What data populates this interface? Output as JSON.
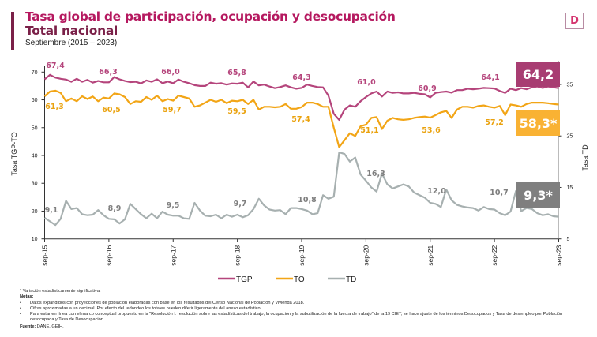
{
  "header": {
    "title": "Tasa global de participación, ocupación y desocupación",
    "subtitle": "Total nacional",
    "period": "Septiembre (2015 – 2023)",
    "logo_letter": "D"
  },
  "chart_data": {
    "type": "line",
    "title": "Tasa global de participación, ocupación y desocupación - Total nacional",
    "ylabel_left": "Tasa TGP-TO",
    "ylabel_right": "Tasa TD",
    "ylim_left": [
      10,
      70
    ],
    "yticks_left": [
      "10",
      "20",
      "30",
      "40",
      "50",
      "60",
      "70"
    ],
    "ylim_right": [
      5,
      35
    ],
    "yticks_right": [
      "5",
      "15",
      "25",
      "35"
    ],
    "xticks": [
      "sep-15",
      "sep-16",
      "sep-17",
      "sep-18",
      "sep-19",
      "sep-20",
      "sep-21",
      "sep-22",
      "sep-23"
    ],
    "x_frequency": "monthly, sep-2015 to sep-2023",
    "legend_position": "bottom",
    "series": [
      {
        "name": "TGP",
        "axis": "left",
        "color": "#b5457c",
        "values": [
          67.4,
          69.0,
          68.0,
          67.6,
          67.3,
          66.5,
          67.6,
          66.5,
          67.2,
          66.2,
          66.8,
          66.3,
          66.3,
          68.2,
          67.4,
          66.8,
          66.4,
          66.5,
          65.9,
          67.0,
          66.5,
          67.4,
          66.0,
          66.6,
          66.0,
          67.3,
          66.5,
          66.0,
          65.3,
          65.0,
          65.0,
          66.2,
          65.8,
          66.0,
          65.5,
          65.9,
          65.8,
          66.2,
          64.5,
          66.6,
          65.2,
          65.5,
          64.8,
          64.2,
          64.6,
          65.2,
          64.5,
          64.0,
          64.3,
          65.5,
          65.0,
          64.6,
          64.5,
          61.5,
          55.0,
          52.8,
          56.5,
          58.0,
          57.5,
          59.5,
          61.0,
          62.3,
          63.0,
          61.2,
          63.0,
          62.5,
          62.7,
          62.3,
          62.3,
          62.5,
          62.2,
          62.0,
          60.9,
          62.5,
          62.8,
          63.0,
          62.6,
          63.5,
          63.5,
          64.0,
          63.8,
          64.0,
          64.3,
          64.2,
          64.1,
          63.2,
          62.5,
          64.0,
          63.5,
          64.2,
          63.8,
          64.5,
          64.8,
          64.3,
          64.8,
          64.5,
          64.2
        ],
        "sep_labels": [
          "67,4",
          "66,3",
          "66,0",
          "65,8",
          "64,3",
          "61,0",
          "60,9",
          "64,1"
        ],
        "last_label": "64,2"
      },
      {
        "name": "TO",
        "axis": "left",
        "color": "#f2a516",
        "values": [
          61.3,
          63.0,
          63.3,
          62.5,
          59.5,
          60.5,
          59.5,
          61.3,
          60.3,
          61.2,
          59.5,
          60.8,
          60.5,
          62.3,
          62.0,
          61.0,
          58.5,
          59.5,
          59.3,
          61.0,
          60.0,
          61.5,
          59.5,
          60.3,
          59.7,
          61.5,
          61.0,
          60.5,
          57.5,
          58.0,
          59.0,
          60.0,
          59.3,
          60.0,
          58.8,
          59.7,
          59.5,
          60.0,
          58.5,
          60.0,
          56.5,
          57.5,
          57.5,
          57.3,
          57.5,
          58.5,
          56.8,
          56.8,
          57.4,
          59.0,
          59.0,
          58.5,
          57.5,
          57.5,
          50.0,
          43.0,
          45.5,
          48.0,
          47.0,
          50.5,
          51.1,
          53.5,
          53.8,
          49.5,
          52.5,
          53.5,
          53.0,
          52.8,
          53.0,
          53.5,
          53.8,
          54.0,
          53.6,
          54.5,
          55.5,
          56.0,
          53.5,
          56.5,
          57.5,
          57.5,
          57.2,
          57.8,
          58.0,
          57.5,
          57.2,
          57.8,
          54.5,
          58.3,
          58.0,
          57.5,
          58.5,
          59.0,
          59.0,
          59.0,
          58.8,
          58.5,
          58.3
        ],
        "sep_labels": [
          "61,3",
          "60,5",
          "59,7",
          "59,5",
          "57,4",
          "51,1",
          "53,6",
          "57,2"
        ],
        "last_label": "58,3*"
      },
      {
        "name": "TD",
        "axis": "right",
        "color": "#a7b0b0",
        "values": [
          9.1,
          8.4,
          7.7,
          8.9,
          12.4,
          10.8,
          11.0,
          9.8,
          9.6,
          9.7,
          10.6,
          9.6,
          8.9,
          8.8,
          8.0,
          8.8,
          11.8,
          10.8,
          9.8,
          9.0,
          9.9,
          9.0,
          10.3,
          9.7,
          9.5,
          9.5,
          9.0,
          8.9,
          12.0,
          10.5,
          9.5,
          9.4,
          9.7,
          9.0,
          9.7,
          9.3,
          9.7,
          9.2,
          9.6,
          10.8,
          12.8,
          11.5,
          10.7,
          10.5,
          10.6,
          9.8,
          11.0,
          11.0,
          10.8,
          10.5,
          9.8,
          10.0,
          13.5,
          12.8,
          13.2,
          21.8,
          21.5,
          20.0,
          20.8,
          17.5,
          16.3,
          15.0,
          14.2,
          17.7,
          15.6,
          14.8,
          15.2,
          15.6,
          15.2,
          14.0,
          13.5,
          13.0,
          12.0,
          11.8,
          11.2,
          14.6,
          12.5,
          11.6,
          11.3,
          11.1,
          11.0,
          10.5,
          11.2,
          10.8,
          10.7,
          10.0,
          9.6,
          10.3,
          14.3,
          10.4,
          11.0,
          10.8,
          10.0,
          9.6,
          9.8,
          9.4,
          9.3
        ],
        "sep_labels": [
          "9,1",
          "8,9",
          "9,5",
          "9,7",
          "10,8",
          "16,3",
          "12,0",
          "10,7"
        ],
        "last_label": "9,3*"
      }
    ],
    "box_colors": {
      "TGP": "#a83d72",
      "TO": "#f9b233",
      "TD": "#7f7f7f"
    }
  },
  "notes": {
    "asterisk": "* Variación estadísticamente significativa.",
    "heading": "Notas:",
    "items": [
      "Datos expandidos con proyecciones de población elaboradas con base en los resultados del Censo Nacional de Población y Vivienda 2018.",
      "Cifras aproximadas a un decimal. Por efecto del redondeo los totales pueden diferir ligeramente del anexo estadístico.",
      "Para estar en línea con el marco conceptual propuesto en la \"Resolución I: resolución sobre las estadísticas del trabajo, la ocupación y la subutilización de la fuerza de trabajo\" de la 19 CIET, se hace ajuste de los términos Desocupados y Tasa de desempleo por Población desocupada y Tasa de Desocupación."
    ],
    "source_label": "Fuente:",
    "source": " DANE, GEIH."
  }
}
